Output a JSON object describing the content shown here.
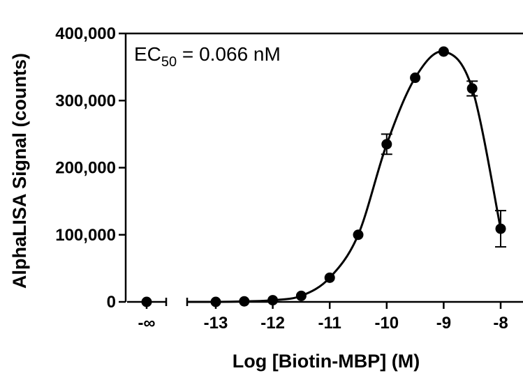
{
  "chart_data": {
    "type": "scatter",
    "title": "",
    "xlabel": "Log [Biotin-MBP] (M)",
    "ylabel": "AlphaLISA Signal (counts)",
    "annotation": {
      "prefix": "EC",
      "subscript": "50",
      "suffix": " = 0.066 nM"
    },
    "x_scale": "log10 concentration (M), segmented axis with zero-concentration point at -∞",
    "xlim": [
      -13.5,
      -7.75
    ],
    "ylim": [
      0,
      400000
    ],
    "x_ticks": [
      -13,
      -12,
      -11,
      -10,
      -9,
      -8
    ],
    "x_tick_labels": [
      "-13",
      "-12",
      "-11",
      "-10",
      "-9",
      "-8"
    ],
    "zero_point_label": "-∞",
    "y_ticks": [
      0,
      100000,
      200000,
      300000,
      400000
    ],
    "y_tick_labels": [
      "0",
      "100,000",
      "200,000",
      "300,000",
      "400,000"
    ],
    "points": [
      {
        "x": "-∞",
        "y": 0,
        "err": 0
      },
      {
        "x": -13,
        "y": 0,
        "err": 0
      },
      {
        "x": -12.5,
        "y": 800,
        "err": 0
      },
      {
        "x": -12,
        "y": 2500,
        "err": 0
      },
      {
        "x": -11.5,
        "y": 9000,
        "err": 0
      },
      {
        "x": -11,
        "y": 36000,
        "err": 0
      },
      {
        "x": -10.5,
        "y": 100000,
        "err": 0
      },
      {
        "x": -10,
        "y": 235000,
        "err": 15000
      },
      {
        "x": -9.5,
        "y": 334000,
        "err": 0
      },
      {
        "x": -9,
        "y": 373000,
        "err": 0
      },
      {
        "x": -8.5,
        "y": 318000,
        "err": 11000
      },
      {
        "x": -8,
        "y": 109000,
        "err": 27000
      }
    ],
    "grid": false,
    "legend": "none"
  }
}
